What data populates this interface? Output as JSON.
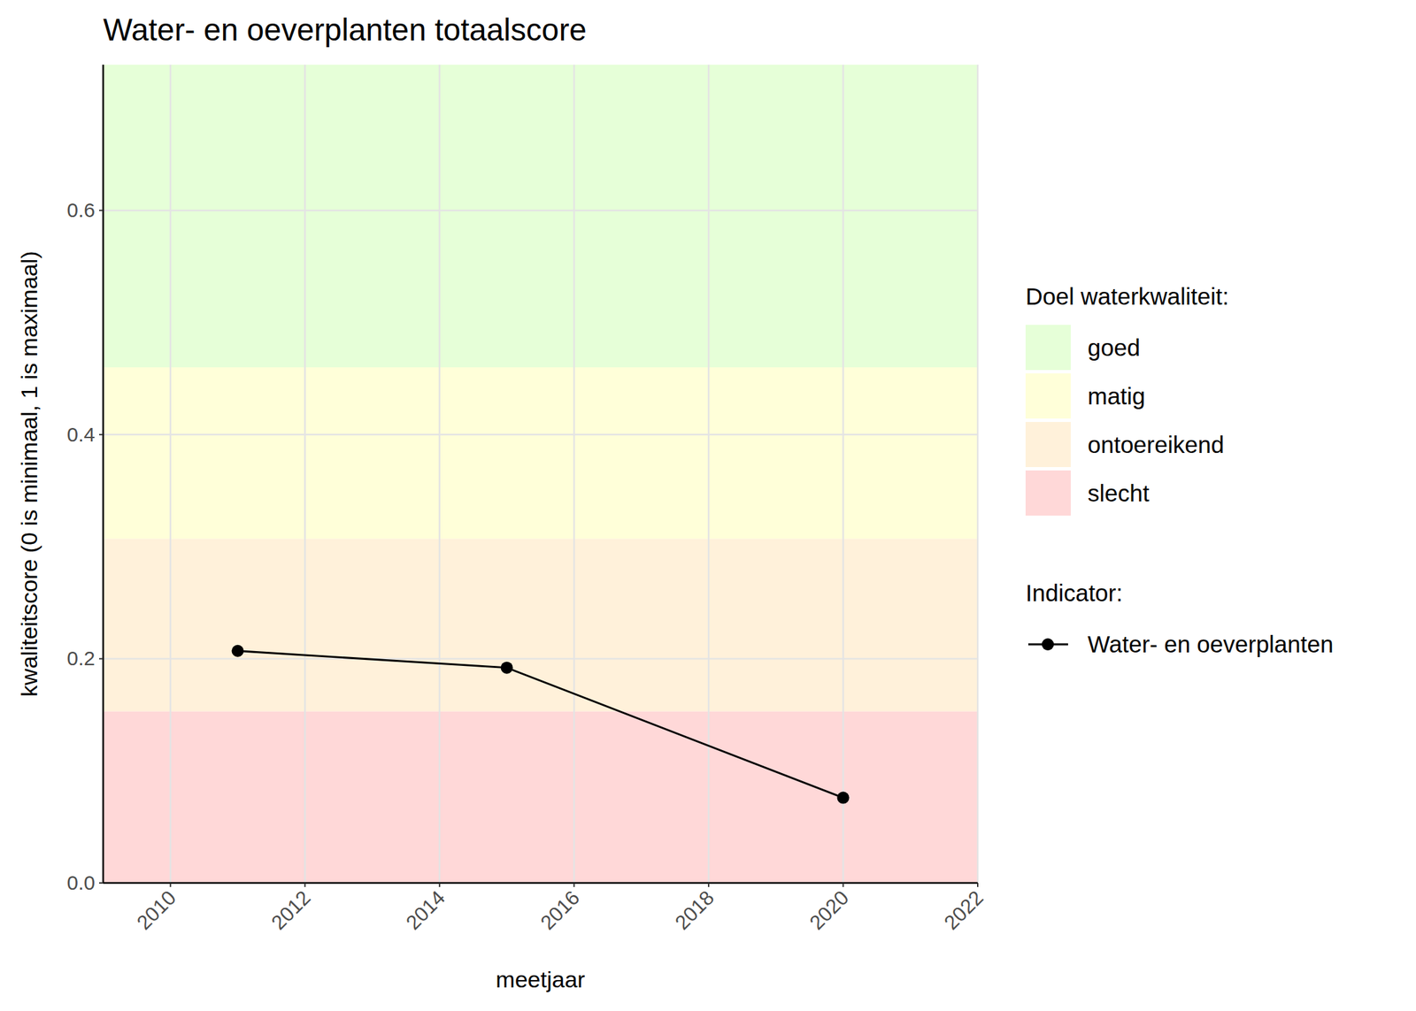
{
  "chart_data": {
    "type": "line",
    "title": "Water- en oeverplanten totaalscore",
    "x_label": "meetjaar",
    "y_label": "kwaliteitscore (0 is minimaal, 1 is maximaal)",
    "x": [
      2011,
      2015,
      2020
    ],
    "series": [
      {
        "name": "Water- en oeverplanten",
        "color": "#000000",
        "marker": "circle",
        "line_style": "solid",
        "values": [
          0.207,
          0.192,
          0.076
        ]
      }
    ],
    "xlim": [
      2009,
      2022
    ],
    "xticks": [
      2010,
      2012,
      2014,
      2016,
      2018,
      2020,
      2022
    ],
    "ylim": [
      0,
      0.73
    ],
    "yticks": [
      {
        "value": 0,
        "label": "0.0"
      },
      0.2,
      0.4,
      0.6
    ],
    "bands": [
      {
        "name": "goed",
        "color": "#e6ffd8",
        "from": 0.46,
        "to": 0.73
      },
      {
        "name": "matig",
        "color": "#ffffd9",
        "from": 0.307,
        "to": 0.46
      },
      {
        "name": "ontoereikend",
        "color": "#fff1da",
        "from": 0.153,
        "to": 0.307
      },
      {
        "name": "slecht",
        "color": "#ffd8d8",
        "from": 0,
        "to": 0.153
      }
    ],
    "band_legend_title": "Doel waterkwaliteit:",
    "series_legend_title": "Indicator:",
    "grid": true,
    "legend": "right"
  }
}
